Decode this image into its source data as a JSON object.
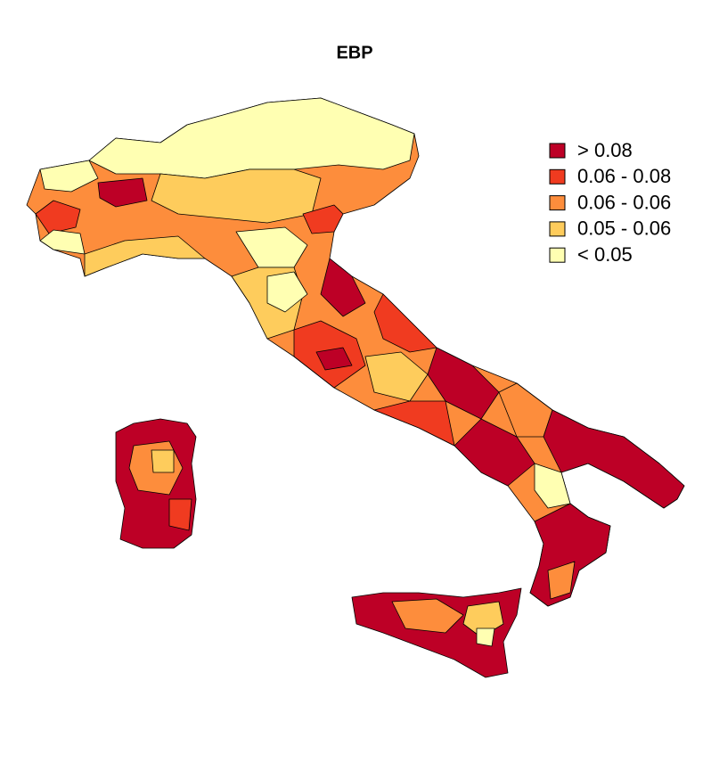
{
  "title": "EBP",
  "legend": [
    {
      "label": "> 0.08",
      "color": "#bd0026"
    },
    {
      "label": "0.06 - 0.08",
      "color": "#f03b20"
    },
    {
      "label": "0.06 - 0.06",
      "color": "#fd8d3c"
    },
    {
      "label": "0.05 - 0.06",
      "color": "#fecc5c"
    },
    {
      "label": "< 0.05",
      "color": "#ffffb2"
    }
  ]
}
